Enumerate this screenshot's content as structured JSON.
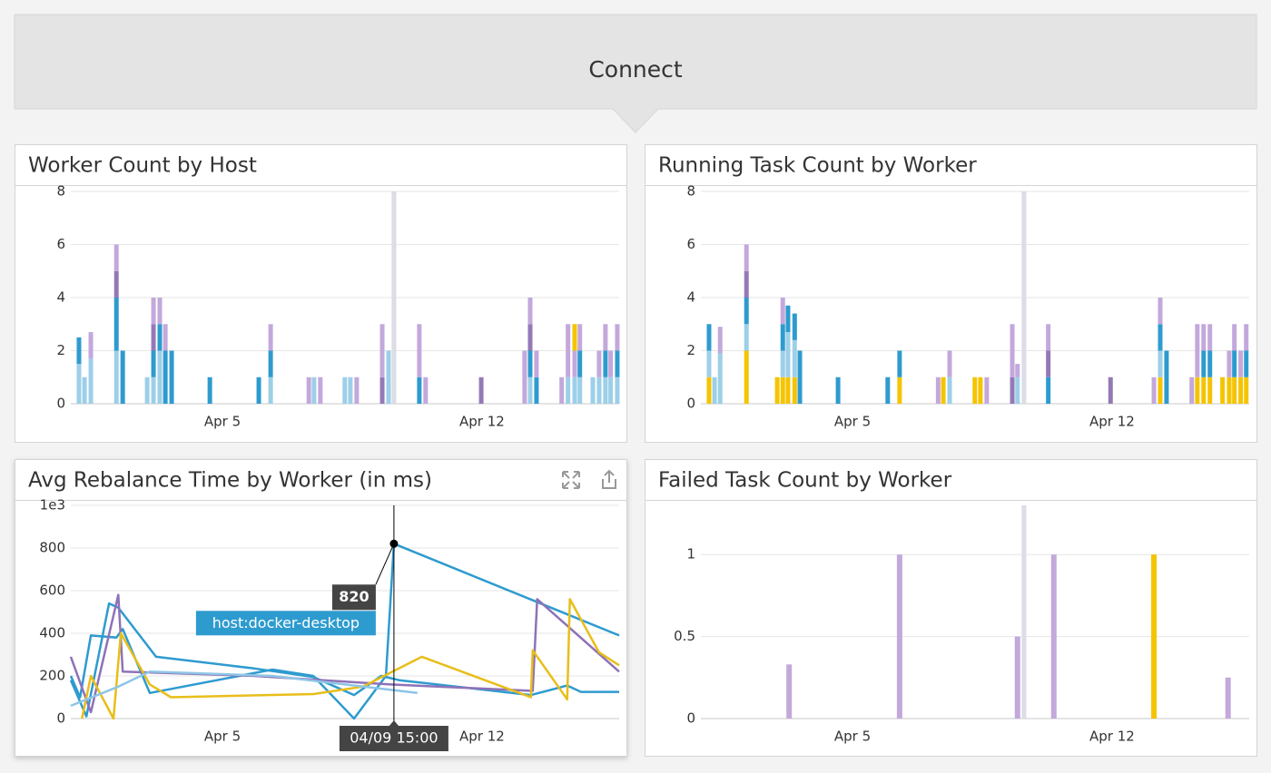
{
  "header": {
    "title": "Connect"
  },
  "chart_data": [
    {
      "type": "bar",
      "title": "Worker Count by Host",
      "x": [
        1.13,
        1.28,
        1.45,
        2.14,
        2.31,
        2.97,
        3.14,
        3.31,
        3.46,
        3.63,
        4.66,
        5.98,
        6.3,
        7.33,
        7.47,
        7.64,
        8.3,
        8.45,
        8.62,
        9.31,
        9.48,
        10.31,
        10.48,
        11.98,
        13.15,
        13.3,
        13.47,
        14.15,
        14.32,
        14.5,
        14.64,
        14.99,
        15.16,
        15.33,
        15.47,
        15.65
      ],
      "series": [
        {
          "color": "#9dcfe8",
          "values": [
            1.5,
            1,
            1.7,
            2,
            null,
            1,
            1,
            2,
            null,
            null,
            null,
            null,
            1,
            null,
            1,
            null,
            1,
            1,
            null,
            null,
            2,
            null,
            null,
            null,
            null,
            1,
            null,
            null,
            1,
            1,
            1,
            1,
            1,
            1,
            1,
            1
          ]
        },
        {
          "color": "#2e9bcf",
          "values": [
            1,
            null,
            null,
            2,
            2,
            null,
            1,
            1,
            2,
            2,
            1,
            1,
            1,
            null,
            null,
            null,
            null,
            null,
            null,
            null,
            null,
            1,
            null,
            null,
            null,
            1,
            1,
            null,
            null,
            null,
            1,
            null,
            null,
            1,
            null,
            1
          ]
        },
        {
          "color": "#9479b6",
          "values": [
            null,
            null,
            null,
            1,
            null,
            null,
            1,
            null,
            null,
            null,
            null,
            null,
            null,
            null,
            null,
            null,
            null,
            null,
            null,
            1,
            null,
            null,
            null,
            1,
            null,
            1,
            null,
            null,
            null,
            null,
            null,
            null,
            null,
            null,
            null,
            null
          ]
        },
        {
          "color": "#c3a8dc",
          "values": [
            null,
            null,
            1,
            1,
            null,
            null,
            1,
            1,
            1,
            null,
            null,
            null,
            1,
            1,
            null,
            1,
            null,
            null,
            1,
            2,
            null,
            2,
            1,
            null,
            2,
            1,
            1,
            1,
            2,
            1,
            1,
            null,
            1,
            1,
            1,
            1
          ]
        },
        {
          "color": "#f5c400",
          "values": [
            null,
            null,
            null,
            null,
            null,
            null,
            null,
            null,
            null,
            null,
            null,
            null,
            null,
            null,
            null,
            null,
            null,
            null,
            null,
            null,
            null,
            null,
            null,
            null,
            null,
            null,
            null,
            null,
            null,
            1,
            null,
            null,
            null,
            null,
            null,
            null
          ]
        }
      ],
      "xlim": [
        0.91,
        15.7
      ],
      "xticks": [
        {
          "value": 5,
          "label": "Apr 5"
        },
        {
          "value": 12,
          "label": "Apr 12"
        }
      ],
      "ylim": [
        0,
        8
      ],
      "yticks": [
        0,
        2,
        4,
        6,
        8
      ],
      "grid": true
    },
    {
      "type": "bar",
      "title": "Running Task Count by Worker",
      "x": [
        1.13,
        1.28,
        1.43,
        2.14,
        2.97,
        3.12,
        3.26,
        3.44,
        3.58,
        4.61,
        5.95,
        6.27,
        7.31,
        7.45,
        7.62,
        8.3,
        8.45,
        8.62,
        9.31,
        9.45,
        10.28,
        11.96,
        13.13,
        13.3,
        13.47,
        14.15,
        14.3,
        14.47,
        14.64,
        14.98,
        15.16,
        15.3,
        15.47,
        15.62
      ],
      "series": [
        {
          "color": "#f5c400",
          "values": [
            1,
            null,
            null,
            2,
            1,
            1,
            1,
            1,
            null,
            null,
            null,
            1,
            null,
            1,
            null,
            1,
            1,
            null,
            null,
            null,
            null,
            null,
            null,
            1,
            null,
            null,
            1,
            1,
            1,
            1,
            1,
            1,
            1,
            1
          ]
        },
        {
          "color": "#9dcfe8",
          "values": [
            1,
            1,
            1.9,
            1,
            null,
            1,
            1.7,
            1.4,
            null,
            null,
            null,
            null,
            null,
            null,
            1,
            null,
            null,
            null,
            null,
            1,
            null,
            null,
            null,
            1,
            null,
            null,
            null,
            null,
            null,
            null,
            null,
            null,
            null,
            null
          ]
        },
        {
          "color": "#2e9bcf",
          "values": [
            1,
            null,
            null,
            1,
            null,
            1,
            1,
            1,
            2,
            1,
            1,
            1,
            null,
            null,
            null,
            null,
            null,
            null,
            null,
            null,
            1,
            null,
            null,
            1,
            2,
            null,
            null,
            1,
            1,
            null,
            null,
            1,
            null,
            1
          ]
        },
        {
          "color": "#9479b6",
          "values": [
            null,
            null,
            null,
            1,
            null,
            null,
            null,
            null,
            null,
            null,
            null,
            null,
            null,
            null,
            null,
            null,
            null,
            null,
            1,
            null,
            1,
            1,
            null,
            null,
            null,
            null,
            null,
            null,
            null,
            null,
            null,
            null,
            null,
            null
          ]
        },
        {
          "color": "#c3a8dc",
          "values": [
            null,
            null,
            1,
            1,
            null,
            1,
            null,
            null,
            null,
            null,
            null,
            null,
            1,
            null,
            1,
            null,
            null,
            1,
            2,
            0.5,
            1,
            null,
            1,
            1,
            null,
            1,
            2,
            1,
            1,
            null,
            1,
            1,
            1,
            1
          ]
        }
      ],
      "xlim": [
        0.91,
        15.7
      ],
      "xticks": [
        {
          "value": 5,
          "label": "Apr 5"
        },
        {
          "value": 12,
          "label": "Apr 12"
        }
      ],
      "ylim": [
        0,
        8
      ],
      "yticks": [
        0,
        2,
        4,
        6,
        8
      ],
      "grid": true
    },
    {
      "type": "line",
      "title": "Avg Rebalance Time by Worker (in ms)",
      "series": [
        {
          "name": "host:docker-desktop",
          "color": "#2e9bcf",
          "x": [
            0.91,
            1.16,
            1.45,
            2.14,
            2.31,
            3.04,
            6.35,
            7.45,
            8.55,
            9.41,
            9.625,
            15.7
          ],
          "values": [
            200,
            100,
            390,
            380,
            420,
            120,
            230,
            200,
            0,
            200,
            820,
            390
          ]
        },
        {
          "color": "#2e9bcf",
          "x": [
            0.91,
            1.33,
            1.94,
            2.19,
            3.21,
            5.86,
            7.45,
            8.55,
            9.28,
            9.77,
            13.32,
            14.3,
            14.67,
            15.7
          ],
          "values": [
            180,
            10,
            540,
            520,
            290,
            235,
            195,
            110,
            200,
            180,
            110,
            155,
            125,
            125
          ]
        },
        {
          "color": "#8e72b8",
          "x": [
            0.91,
            1.45,
            2.19,
            2.31,
            5.86,
            9.53,
            13.37,
            13.49,
            15.7
          ],
          "values": [
            290,
            30,
            580,
            220,
            200,
            160,
            130,
            560,
            220
          ]
        },
        {
          "color": "#e8be1a",
          "x": [
            1.21,
            1.45,
            2.06,
            2.26,
            3.04,
            3.61,
            7.45,
            8.79,
            10.38,
            13.32,
            13.37,
            14.3,
            14.37,
            15.16,
            15.7
          ],
          "values": [
            0,
            200,
            0,
            400,
            160,
            100,
            115,
            150,
            290,
            100,
            320,
            90,
            560,
            310,
            250
          ]
        },
        {
          "color": "#8ec5e6",
          "x": [
            0.91,
            2.19,
            3.04,
            6.35,
            10.26
          ],
          "values": [
            60,
            150,
            220,
            200,
            120
          ]
        }
      ],
      "tooltip": {
        "series": 0,
        "point": 10,
        "label": "04/09 15:00"
      },
      "xlim": [
        0.91,
        15.7
      ],
      "xticks": [
        {
          "value": 5,
          "label": "Apr 5"
        },
        {
          "value": 12,
          "label": "Apr 12"
        }
      ],
      "ylim": [
        0,
        1000
      ],
      "yticks": [
        0,
        200,
        400,
        600,
        800,
        {
          "value": 1000,
          "label": "1e3"
        }
      ],
      "grid": true
    },
    {
      "type": "bar",
      "title": "Failed Task Count by Worker",
      "x": [
        3.29,
        6.27,
        9.45,
        10.43,
        13.13,
        15.13
      ],
      "series": [
        {
          "color": "#c3a8dc",
          "values": [
            0.33,
            1,
            0.5,
            1,
            null,
            0.25
          ]
        },
        {
          "color": "#f5c400",
          "values": [
            null,
            null,
            null,
            null,
            1,
            null
          ]
        }
      ],
      "xlim": [
        0.91,
        15.7
      ],
      "xticks": [
        {
          "value": 5,
          "label": "Apr 5"
        },
        {
          "value": 12,
          "label": "Apr 12"
        }
      ],
      "ylim": [
        0,
        1.3
      ],
      "yticks": [
        0,
        0.5,
        1
      ],
      "grid": true
    }
  ]
}
